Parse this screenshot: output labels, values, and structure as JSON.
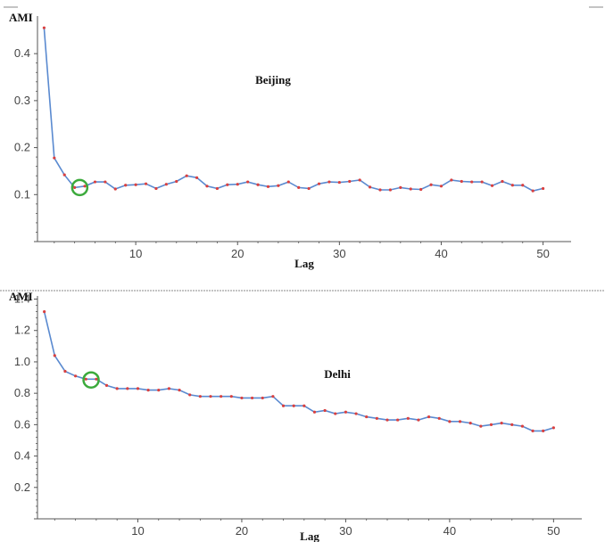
{
  "colors": {
    "line": "#5a8ad0",
    "point": "#d94040",
    "marker": "#3caa3c",
    "axis": "#555555",
    "divider": "#777777"
  },
  "chart_data": [
    {
      "type": "line",
      "title": "Beijing",
      "xlabel": "Lag",
      "ylabel": "AMI",
      "xlim": [
        0,
        51
      ],
      "ylim": [
        0,
        0.48
      ],
      "xticks": [
        10,
        20,
        30,
        40,
        50
      ],
      "yticks": [
        0.1,
        0.2,
        0.3,
        0.4
      ],
      "grid": false,
      "highlight": {
        "x": 4.5,
        "y": 0.115,
        "shape": "circle"
      },
      "series": [
        {
          "x": [
            1,
            2,
            3,
            4,
            5,
            6,
            7,
            8,
            9,
            10,
            11,
            12,
            13,
            14,
            15,
            16,
            17,
            18,
            19,
            20,
            21,
            22,
            23,
            24,
            25,
            26,
            27,
            28,
            29,
            30,
            31,
            32,
            33,
            34,
            35,
            36,
            37,
            38,
            39,
            40,
            41,
            42,
            43,
            44,
            45,
            46,
            47,
            48,
            49,
            50
          ],
          "values": [
            0.455,
            0.178,
            0.142,
            0.115,
            0.118,
            0.127,
            0.127,
            0.112,
            0.12,
            0.121,
            0.123,
            0.113,
            0.122,
            0.128,
            0.14,
            0.136,
            0.118,
            0.113,
            0.121,
            0.122,
            0.127,
            0.121,
            0.117,
            0.119,
            0.127,
            0.115,
            0.113,
            0.123,
            0.127,
            0.126,
            0.128,
            0.131,
            0.116,
            0.11,
            0.11,
            0.115,
            0.112,
            0.111,
            0.121,
            0.118,
            0.131,
            0.128,
            0.127,
            0.127,
            0.119,
            0.128,
            0.12,
            0.12,
            0.108,
            0.113
          ]
        }
      ]
    },
    {
      "type": "line",
      "title": "Delhi",
      "xlabel": "Lag",
      "ylabel": "AMI",
      "xlim": [
        0,
        51
      ],
      "ylim": [
        0,
        1.42
      ],
      "xticks": [
        10,
        20,
        30,
        40,
        50
      ],
      "yticks": [
        0.2,
        0.4,
        0.6,
        0.8,
        1.0,
        1.2,
        1.4
      ],
      "grid": false,
      "highlight": {
        "x": 5.5,
        "y": 0.885,
        "shape": "circle"
      },
      "series": [
        {
          "x": [
            1,
            2,
            3,
            4,
            5,
            6,
            7,
            8,
            9,
            10,
            11,
            12,
            13,
            14,
            15,
            16,
            17,
            18,
            19,
            20,
            21,
            22,
            23,
            24,
            25,
            26,
            27,
            28,
            29,
            30,
            31,
            32,
            33,
            34,
            35,
            36,
            37,
            38,
            39,
            40,
            41,
            42,
            43,
            44,
            45,
            46,
            47,
            48,
            49,
            50
          ],
          "values": [
            1.32,
            1.04,
            0.94,
            0.91,
            0.89,
            0.89,
            0.85,
            0.83,
            0.83,
            0.83,
            0.82,
            0.82,
            0.83,
            0.82,
            0.79,
            0.78,
            0.78,
            0.78,
            0.78,
            0.77,
            0.77,
            0.77,
            0.78,
            0.72,
            0.72,
            0.72,
            0.68,
            0.69,
            0.67,
            0.68,
            0.67,
            0.65,
            0.64,
            0.63,
            0.63,
            0.64,
            0.63,
            0.65,
            0.64,
            0.62,
            0.62,
            0.61,
            0.59,
            0.6,
            0.61,
            0.6,
            0.59,
            0.56,
            0.56,
            0.58
          ]
        }
      ]
    }
  ]
}
